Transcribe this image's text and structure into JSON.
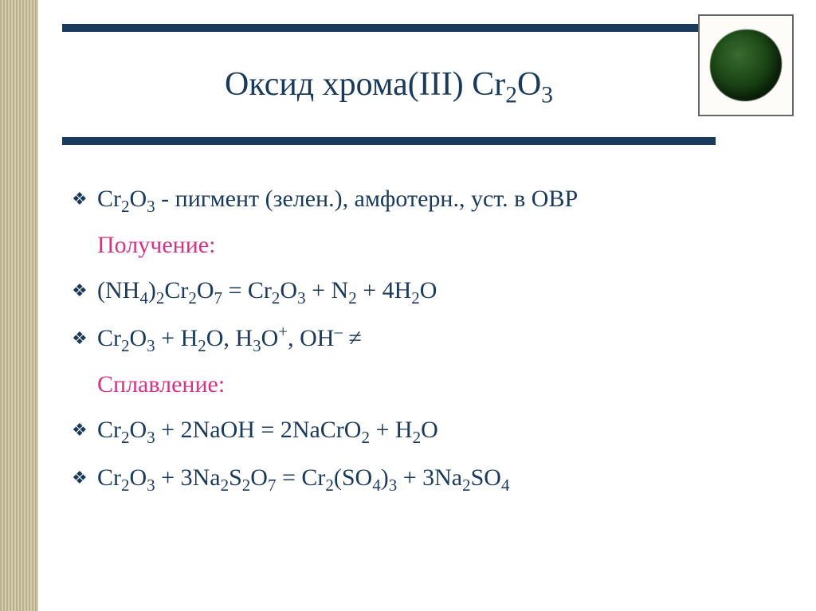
{
  "slide": {
    "title_plain": "Оксид хрома(III) Cr2O3",
    "background_color": "#ffffff",
    "accent_color": "#1a3a5c",
    "heading_color": "#d63384",
    "rail_colors": [
      "#b8b090",
      "#d4cca8"
    ],
    "font_family": "Georgia, Times New Roman, serif",
    "title_fontsize": 42,
    "body_fontsize": 30,
    "image": {
      "description": "green chromium oxide pigment clump",
      "frame_border_color": "#666666",
      "pigment_gradient": [
        "#3a6b2e",
        "#1e4a18",
        "#0f2e0c",
        "#0a1f08"
      ]
    },
    "lines": [
      {
        "kind": "bullet",
        "plain": "Cr2O3 - пигмент (зелен.), амфотерн., уст. в ОВР"
      },
      {
        "kind": "heading",
        "plain": "Получение:"
      },
      {
        "kind": "bullet",
        "plain": "(NH4)2Cr2O7 = Cr2O3 + N2 + 4H2O"
      },
      {
        "kind": "bullet",
        "plain": "Cr2O3 + H2O, H3O+, OH– ≠"
      },
      {
        "kind": "heading",
        "plain": "Сплавление:"
      },
      {
        "kind": "bullet",
        "plain": "Cr2O3 + 2NaOH = 2NaCrO2 + H2O"
      },
      {
        "kind": "bullet",
        "plain": "Cr2O3 + 3Na2S2O7 = Cr2(SO4)3 + 3Na2SO4"
      }
    ]
  }
}
